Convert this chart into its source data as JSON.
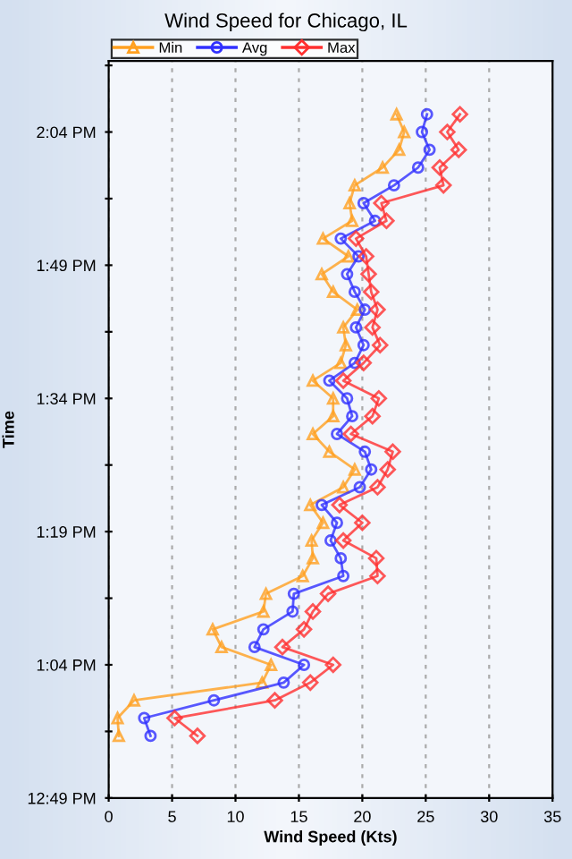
{
  "chart_data": {
    "type": "line",
    "title": "Wind Speed for Chicago, IL",
    "xlabel": "Wind Speed (Kts)",
    "ylabel": "Time",
    "xlim": [
      0,
      35
    ],
    "xticks": [
      0,
      5,
      10,
      15,
      20,
      25,
      30,
      35
    ],
    "ylim": [
      12.8167,
      14.2
    ],
    "yticks": [
      {
        "value": 12.8167,
        "label": "12:49 PM"
      },
      {
        "value": 12.9417,
        "label": null
      },
      {
        "value": 13.0667,
        "label": "1:04 PM"
      },
      {
        "value": 13.1917,
        "label": null
      },
      {
        "value": 13.3167,
        "label": "1:19 PM"
      },
      {
        "value": 13.4417,
        "label": null
      },
      {
        "value": 13.5667,
        "label": "1:34 PM"
      },
      {
        "value": 13.6917,
        "label": null
      },
      {
        "value": 13.8167,
        "label": "1:49 PM"
      },
      {
        "value": 13.9417,
        "label": null
      },
      {
        "value": 14.0667,
        "label": "2:04 PM"
      },
      {
        "value": 14.1917,
        "label": null
      }
    ],
    "grid": "x",
    "legend": "top left",
    "line_style": "solid",
    "series": [
      {
        "name": "Min",
        "color": "#ffa020",
        "marker": "triangle",
        "x": [
          0.8,
          0.7,
          2.0,
          12.1,
          12.8,
          8.9,
          8.2,
          12.2,
          12.4,
          15.3,
          16.1,
          16.0,
          16.9,
          15.9,
          18.5,
          19.4,
          17.4,
          16.1,
          17.7,
          17.7,
          16.1,
          18.3,
          18.7,
          18.5,
          19.6,
          17.7,
          16.8,
          18.9,
          16.9,
          19.2,
          19.0,
          19.4,
          21.6,
          22.9,
          23.3,
          22.7
        ],
        "values": [
          12.9333,
          12.9667,
          13.0,
          13.0333,
          13.0667,
          13.1,
          13.1333,
          13.1667,
          13.2,
          13.2333,
          13.2667,
          13.3,
          13.3333,
          13.3667,
          13.4,
          13.4333,
          13.4667,
          13.5,
          13.5333,
          13.5667,
          13.6,
          13.6333,
          13.6667,
          13.7,
          13.7333,
          13.7667,
          13.8,
          13.8333,
          13.8667,
          13.9,
          13.9333,
          13.9667,
          14.0,
          14.0333,
          14.0667,
          14.1
        ]
      },
      {
        "name": "Avg",
        "color": "#3030ff",
        "marker": "circle",
        "x": [
          3.3,
          2.8,
          8.3,
          13.8,
          15.4,
          11.5,
          12.2,
          14.5,
          14.6,
          18.5,
          18.3,
          17.5,
          18.0,
          16.8,
          19.8,
          20.7,
          20.2,
          18.0,
          19.2,
          18.8,
          17.4,
          19.4,
          20.1,
          19.5,
          20.2,
          19.4,
          18.8,
          19.7,
          18.3,
          21.0,
          20.1,
          22.5,
          24.4,
          25.3,
          24.7,
          25.1
        ],
        "values": [
          12.9333,
          12.9667,
          13.0,
          13.0333,
          13.0667,
          13.1,
          13.1333,
          13.1667,
          13.2,
          13.2333,
          13.2667,
          13.3,
          13.3333,
          13.3667,
          13.4,
          13.4333,
          13.4667,
          13.5,
          13.5333,
          13.5667,
          13.6,
          13.6333,
          13.6667,
          13.7,
          13.7333,
          13.7667,
          13.8,
          13.8333,
          13.8667,
          13.9,
          13.9333,
          13.9667,
          14.0,
          14.0333,
          14.0667,
          14.1
        ]
      },
      {
        "name": "Max",
        "color": "#ff3030",
        "marker": "diamond",
        "x": [
          7.0,
          5.2,
          13.1,
          15.9,
          17.7,
          13.7,
          15.4,
          16.1,
          17.3,
          21.2,
          21.1,
          18.5,
          20.0,
          18.2,
          21.2,
          22.0,
          22.4,
          19.1,
          20.8,
          21.3,
          18.5,
          20.1,
          21.4,
          20.8,
          21.2,
          20.7,
          20.5,
          20.3,
          19.5,
          21.9,
          21.5,
          26.4,
          26.1,
          27.6,
          26.7,
          27.7
        ],
        "values": [
          12.9333,
          12.9667,
          13.0,
          13.0333,
          13.0667,
          13.1,
          13.1333,
          13.1667,
          13.2,
          13.2333,
          13.2667,
          13.3,
          13.3333,
          13.3667,
          13.4,
          13.4333,
          13.4667,
          13.5,
          13.5333,
          13.5667,
          13.6,
          13.6333,
          13.6667,
          13.7,
          13.7333,
          13.7667,
          13.8,
          13.8333,
          13.8667,
          13.9,
          13.9333,
          13.9667,
          14.0,
          14.0333,
          14.0667,
          14.1
        ]
      }
    ]
  }
}
